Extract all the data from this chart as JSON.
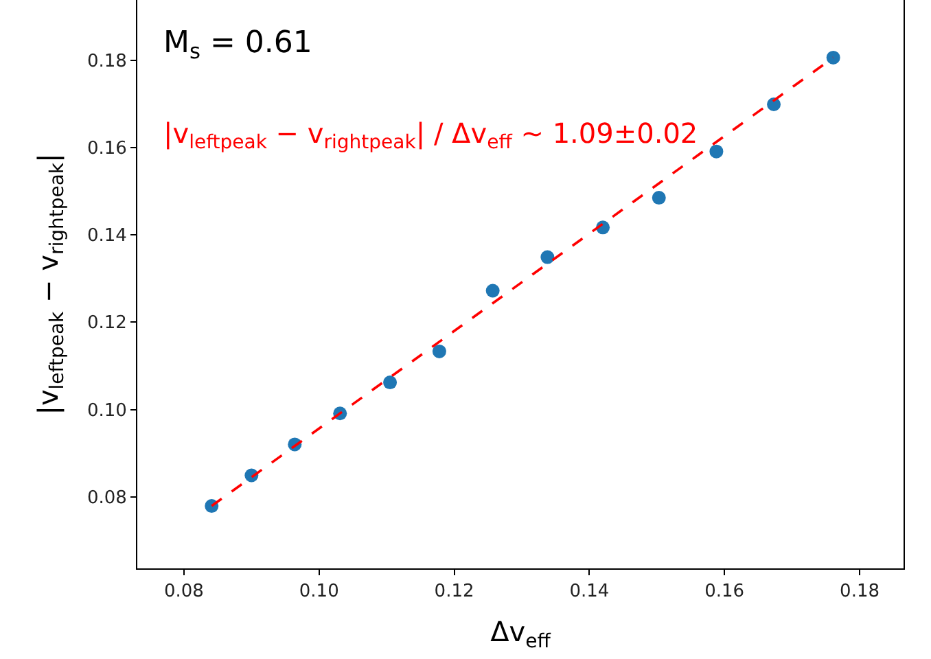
{
  "chart_data": {
    "type": "scatter",
    "xlabel": "Δv$_{eff}$",
    "ylabel": "|v$_{leftpeak}$ − v$_{rightpeak}$|",
    "annotations": [
      "M$_{s}$ = 0.61",
      "|v$_{leftpeak}$ − v$_{rightpeak}$| / Δv$_{eff}$ ~ 1.09±0.02"
    ],
    "series": [
      {
        "color": "#1f77b4",
        "marker": "circle",
        "x": [
          0.0841,
          0.09,
          0.0964,
          0.1031,
          0.1105,
          0.1178,
          0.1257,
          0.1338,
          0.142,
          0.1503,
          0.1588,
          0.1673,
          0.1761
        ],
        "values": [
          0.0779,
          0.0849,
          0.092,
          0.0991,
          0.1062,
          0.1133,
          0.1272,
          0.1349,
          0.1417,
          0.1485,
          0.1591,
          0.1699,
          0.1806
        ]
      },
      {
        "type": "line",
        "color": "#ff0000",
        "line_style": "dashed",
        "marker": "none",
        "x": [
          0.0841,
          0.1761
        ],
        "values": [
          0.0779,
          0.1806
        ]
      }
    ],
    "xlim": [
      0.0731,
      0.1865
    ],
    "ylim": [
      0.0636,
      0.1938
    ],
    "xticks": [
      {
        "value": 0.08,
        "label": "0.08"
      },
      {
        "value": 0.1,
        "label": "0.10"
      },
      {
        "value": 0.12,
        "label": "0.12"
      },
      {
        "value": 0.14,
        "label": "0.14"
      },
      {
        "value": 0.16,
        "label": "0.16"
      },
      {
        "value": 0.18,
        "label": "0.18"
      }
    ],
    "yticks": [
      {
        "value": 0.08,
        "label": "0.08"
      },
      {
        "value": 0.1,
        "label": "0.10"
      },
      {
        "value": 0.12,
        "label": "0.12"
      },
      {
        "value": 0.14,
        "label": "0.14"
      },
      {
        "value": 0.16,
        "label": "0.16"
      },
      {
        "value": 0.18,
        "label": "0.18"
      }
    ]
  }
}
